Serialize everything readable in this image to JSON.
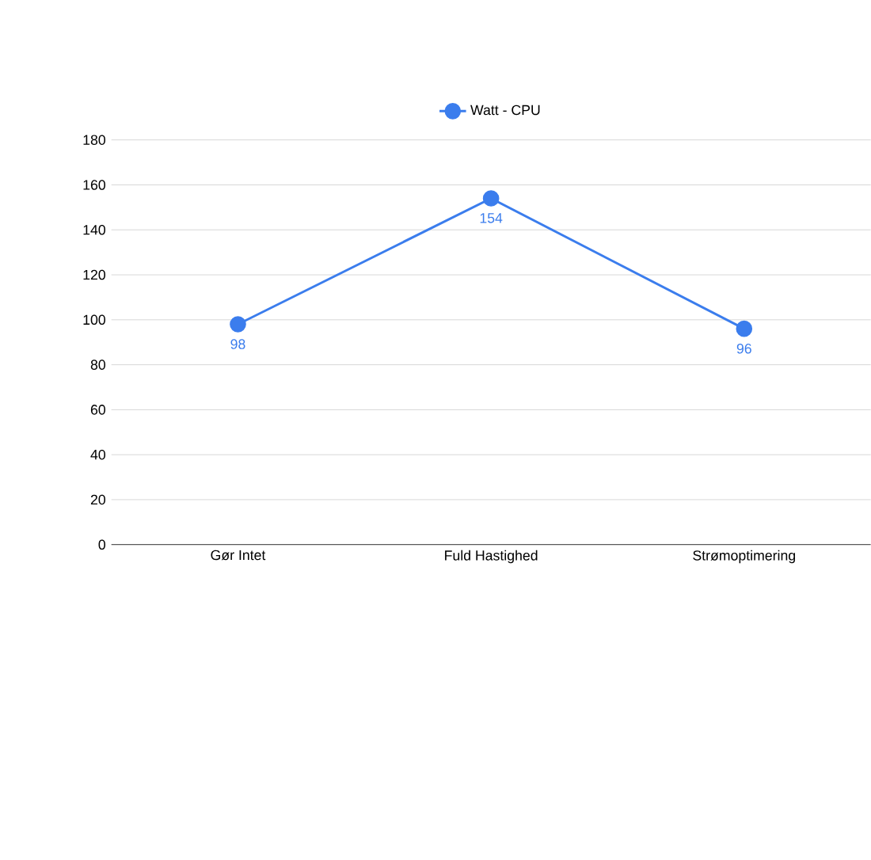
{
  "chart_data": {
    "type": "line",
    "categories": [
      "Gør Intet",
      "Fuld Hastighed",
      "Strømoptimering"
    ],
    "series": [
      {
        "name": "Watt - CPU",
        "color": "#3b7ded",
        "values": [
          98,
          154,
          96
        ]
      }
    ],
    "ylim": [
      0,
      180
    ],
    "yticks": [
      0,
      20,
      40,
      60,
      80,
      100,
      120,
      140,
      160,
      180
    ],
    "grid": "y",
    "legend": "top",
    "marker": "circle",
    "data_labels": true
  }
}
